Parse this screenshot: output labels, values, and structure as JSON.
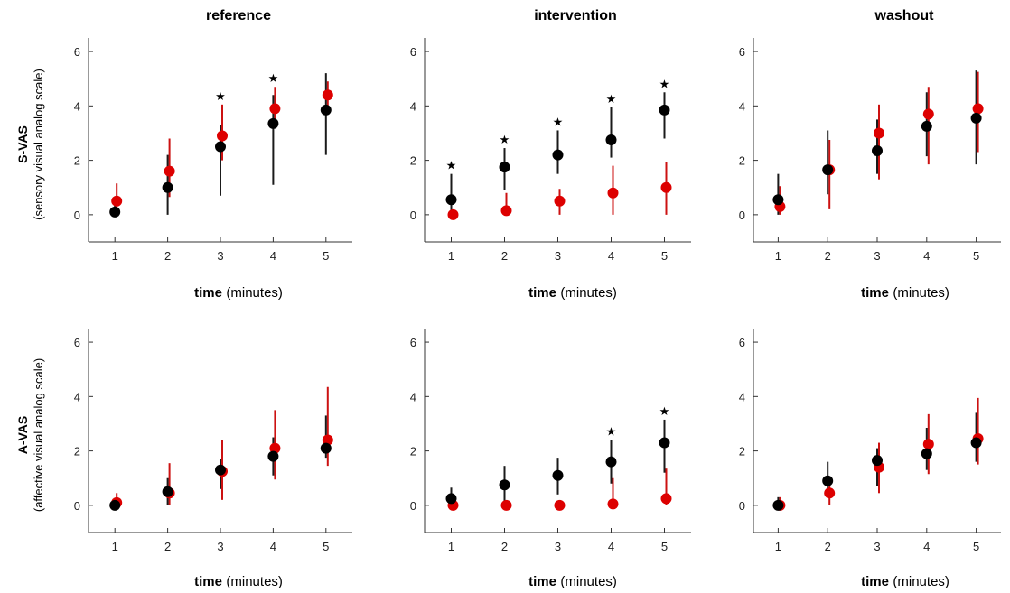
{
  "columns": [
    "reference",
    "intervention",
    "washout"
  ],
  "rows": [
    {
      "label": "S-VAS",
      "sublabel": "(sensory visual analog scale)"
    },
    {
      "label": "A-VAS",
      "sublabel": "(affective visual analog scale)"
    }
  ],
  "x_axis": {
    "label_bold": "time",
    "label_unit": "(minutes)",
    "ticks": [
      1,
      2,
      3,
      4,
      5
    ]
  },
  "y_axis": {
    "ticks": [
      0,
      2,
      4,
      6
    ],
    "ylim": [
      -1,
      6.5
    ]
  },
  "colors": {
    "black_series": "#000000",
    "red_series": "#dd0000",
    "black_errorbar": "#1a1a1a",
    "red_errorbar": "#cc1111"
  },
  "significance_marker": "★",
  "chart_data": [
    {
      "type": "scatter",
      "panel": "S-VAS reference",
      "x": [
        1,
        2,
        3,
        4,
        5
      ],
      "ylim": [
        -1,
        6.5
      ],
      "xlim": [
        0.5,
        5.5
      ],
      "series": [
        {
          "values": [
            0.1,
            1.0,
            2.5,
            3.35,
            3.85
          ],
          "err_low": [
            0.0,
            0.0,
            0.7,
            1.1,
            2.2
          ],
          "err_high": [
            0.35,
            2.2,
            3.3,
            4.4,
            5.2
          ],
          "color": "#000000"
        },
        {
          "values": [
            0.5,
            1.6,
            2.9,
            3.9,
            4.4
          ],
          "err_low": [
            0.0,
            0.65,
            2.0,
            3.3,
            3.7
          ],
          "err_high": [
            1.15,
            2.8,
            4.05,
            4.7,
            4.9
          ],
          "color": "#dd0000"
        }
      ],
      "significant": [
        false,
        false,
        true,
        true,
        false
      ]
    },
    {
      "type": "scatter",
      "panel": "S-VAS intervention",
      "x": [
        1,
        2,
        3,
        4,
        5
      ],
      "ylim": [
        -1,
        6.5
      ],
      "xlim": [
        0.5,
        5.5
      ],
      "series": [
        {
          "values": [
            0.55,
            1.75,
            2.2,
            2.75,
            3.85
          ],
          "err_low": [
            0.0,
            0.9,
            1.5,
            2.1,
            2.8
          ],
          "err_high": [
            1.5,
            2.45,
            3.1,
            3.95,
            4.5
          ],
          "color": "#000000"
        },
        {
          "values": [
            0.0,
            0.15,
            0.5,
            0.8,
            1.0
          ],
          "err_low": [
            0.0,
            0.0,
            0.0,
            0.0,
            0.0
          ],
          "err_high": [
            0.0,
            0.8,
            0.95,
            1.8,
            1.95
          ],
          "color": "#dd0000"
        }
      ],
      "significant": [
        true,
        true,
        true,
        true,
        true
      ]
    },
    {
      "type": "scatter",
      "panel": "S-VAS washout",
      "x": [
        1,
        2,
        3,
        4,
        5
      ],
      "ylim": [
        -1,
        6.5
      ],
      "xlim": [
        0.5,
        5.5
      ],
      "series": [
        {
          "values": [
            0.55,
            1.65,
            2.35,
            3.25,
            3.55
          ],
          "err_low": [
            0.0,
            0.75,
            1.5,
            2.15,
            1.85
          ],
          "err_high": [
            1.5,
            3.1,
            3.5,
            4.5,
            5.3
          ],
          "color": "#000000"
        },
        {
          "values": [
            0.3,
            1.65,
            3.0,
            3.7,
            3.9
          ],
          "err_low": [
            0.0,
            0.2,
            1.3,
            1.85,
            2.3
          ],
          "err_high": [
            1.05,
            2.75,
            4.05,
            4.7,
            5.25
          ],
          "color": "#dd0000"
        }
      ],
      "significant": [
        false,
        false,
        false,
        false,
        false
      ]
    },
    {
      "type": "scatter",
      "panel": "A-VAS reference",
      "x": [
        1,
        2,
        3,
        4,
        5
      ],
      "ylim": [
        -1,
        6.5
      ],
      "xlim": [
        0.5,
        5.5
      ],
      "series": [
        {
          "values": [
            0.0,
            0.5,
            1.3,
            1.8,
            2.1
          ],
          "err_low": [
            0.0,
            0.0,
            0.6,
            1.1,
            1.75
          ],
          "err_high": [
            0.2,
            1.0,
            1.7,
            2.5,
            3.3
          ],
          "color": "#000000"
        },
        {
          "values": [
            0.1,
            0.45,
            1.25,
            2.1,
            2.4
          ],
          "err_low": [
            0.0,
            0.0,
            0.2,
            0.95,
            1.45
          ],
          "err_high": [
            0.45,
            1.55,
            2.4,
            3.5,
            4.35
          ],
          "color": "#dd0000"
        }
      ],
      "significant": [
        false,
        false,
        false,
        false,
        false
      ]
    },
    {
      "type": "scatter",
      "panel": "A-VAS intervention",
      "x": [
        1,
        2,
        3,
        4,
        5
      ],
      "ylim": [
        -1,
        6.5
      ],
      "xlim": [
        0.5,
        5.5
      ],
      "series": [
        {
          "values": [
            0.25,
            0.75,
            1.1,
            1.6,
            2.3
          ],
          "err_low": [
            0.0,
            0.0,
            0.4,
            0.8,
            1.2
          ],
          "err_high": [
            0.65,
            1.45,
            1.75,
            2.4,
            3.15
          ],
          "color": "#000000"
        },
        {
          "values": [
            0.0,
            0.0,
            0.0,
            0.05,
            0.25
          ],
          "err_low": [
            0.0,
            0.0,
            0.0,
            0.0,
            0.0
          ],
          "err_high": [
            0.0,
            0.0,
            0.0,
            1.0,
            1.35
          ],
          "color": "#dd0000"
        }
      ],
      "significant": [
        false,
        false,
        false,
        true,
        true
      ]
    },
    {
      "type": "scatter",
      "panel": "A-VAS washout",
      "x": [
        1,
        2,
        3,
        4,
        5
      ],
      "ylim": [
        -1,
        6.5
      ],
      "xlim": [
        0.5,
        5.5
      ],
      "series": [
        {
          "values": [
            0.0,
            0.9,
            1.65,
            1.9,
            2.3
          ],
          "err_low": [
            0.0,
            0.3,
            0.7,
            1.3,
            1.6
          ],
          "err_high": [
            0.3,
            1.6,
            2.1,
            2.85,
            3.4
          ],
          "color": "#000000"
        },
        {
          "values": [
            0.0,
            0.45,
            1.4,
            2.25,
            2.45
          ],
          "err_low": [
            0.0,
            0.0,
            0.45,
            1.15,
            1.5
          ],
          "err_high": [
            0.3,
            0.95,
            2.3,
            3.35,
            3.95
          ],
          "color": "#dd0000"
        }
      ],
      "significant": [
        false,
        false,
        false,
        false,
        false
      ]
    }
  ]
}
